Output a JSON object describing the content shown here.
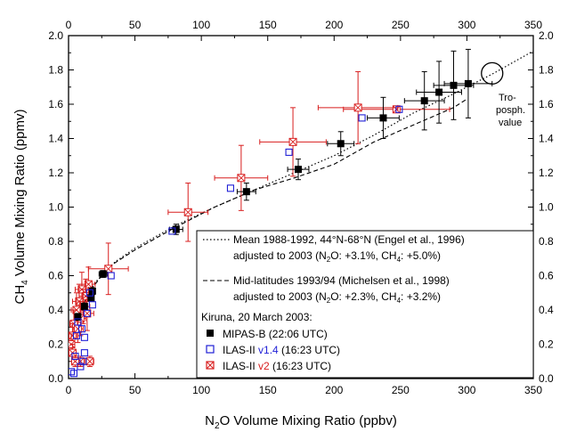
{
  "chart_data": {
    "type": "scatter",
    "xlabel_main": "N",
    "xlabel_sub": "2",
    "xlabel_rest": "O Volume Mixing Ratio (ppbv)",
    "ylabel_main": "CH",
    "ylabel_sub": "4",
    "ylabel_rest": " Volume Mixing Ratio (ppmv)",
    "xlim": [
      0,
      350
    ],
    "ylim": [
      0.0,
      2.0
    ],
    "xticks": [
      0,
      50,
      100,
      150,
      200,
      250,
      300,
      350
    ],
    "yticks": [
      0.0,
      0.2,
      0.4,
      0.6,
      0.8,
      1.0,
      1.2,
      1.4,
      1.6,
      1.8,
      2.0
    ],
    "xtick_labels": [
      "0",
      "50",
      "100",
      "150",
      "200",
      "250",
      "300",
      "350"
    ],
    "ytick_labels": [
      "0.0",
      "0.2",
      "0.4",
      "0.6",
      "0.8",
      "1.0",
      "1.2",
      "1.4",
      "1.6",
      "1.8",
      "2.0"
    ],
    "annotation": [
      "Tro-",
      "posph.",
      "value"
    ],
    "tropo_point": {
      "x": 319,
      "y": 1.78
    },
    "legend": {
      "mean_line1": "Mean 1988-1992, 44°N-68°N (Engel et al., 1996)",
      "mean_line2_a": "adjusted to 2003 (N",
      "mean_line2_sub1": "2",
      "mean_line2_b": "O: +3.1%, CH",
      "mean_line2_sub2": "4",
      "mean_line2_c": ": +5.0%)",
      "mid_line1": "Mid-latitudes 1993/94 (Michelsen et al., 1998)",
      "mid_line2_a": "adjusted to 2003 (N",
      "mid_line2_sub1": "2",
      "mid_line2_b": "O: +2.3%, CH",
      "mid_line2_sub2": "4",
      "mid_line2_c": ": +3.2%)",
      "kiruna": "Kiruna, 20 March 2003:",
      "mipas": "MIPAS-B (22:06 UTC)",
      "ilas14_a": "ILAS-II ",
      "ilas14_b": "v1.4",
      "ilas14_c": " (16:23 UTC)",
      "ilas2_a": "ILAS-II ",
      "ilas2_b": "v2",
      "ilas2_c": " (16:23 UTC)"
    },
    "colors": {
      "mipas": "#000000",
      "ilas14": "#1f1fd6",
      "ilas2": "#d81e1e",
      "axis": "#000000"
    },
    "series": [
      {
        "name": "Mean 1988-1992, 44°N-68°N (Engel et al., 1996)",
        "style": "dotted",
        "x": [
          2,
          10,
          20,
          35,
          50,
          80,
          110,
          140,
          170,
          200,
          230,
          260,
          290,
          320,
          350
        ],
        "y": [
          0.25,
          0.42,
          0.56,
          0.68,
          0.76,
          0.89,
          1.0,
          1.1,
          1.2,
          1.3,
          1.42,
          1.55,
          1.66,
          1.78,
          1.91
        ]
      },
      {
        "name": "Mid-latitudes 1993/94 (Michelsen et al., 1998)",
        "style": "dashed",
        "x": [
          5,
          15,
          30,
          50,
          80,
          110,
          140,
          170,
          200,
          230,
          260,
          290,
          300
        ],
        "y": [
          0.33,
          0.5,
          0.65,
          0.75,
          0.88,
          1.0,
          1.1,
          1.17,
          1.25,
          1.38,
          1.48,
          1.58,
          1.63
        ]
      },
      {
        "name": "MIPAS-B (22:06 UTC)",
        "marker": "filled-square",
        "points": [
          {
            "x": 301,
            "y": 1.72,
            "xe": 18,
            "ye": 0.2
          },
          {
            "x": 290,
            "y": 1.71,
            "xe": 15,
            "ye": 0.2
          },
          {
            "x": 279,
            "y": 1.67,
            "xe": 17,
            "ye": 0.18
          },
          {
            "x": 268,
            "y": 1.62,
            "xe": 15,
            "ye": 0.17
          },
          {
            "x": 237,
            "y": 1.52,
            "xe": 12,
            "ye": 0.12
          },
          {
            "x": 205,
            "y": 1.37,
            "xe": 10,
            "ye": 0.07
          },
          {
            "x": 173,
            "y": 1.22,
            "xe": 8,
            "ye": 0.06
          },
          {
            "x": 134,
            "y": 1.09,
            "xe": 7,
            "ye": 0.05
          },
          {
            "x": 81,
            "y": 0.87,
            "xe": 5,
            "ye": 0.03
          },
          {
            "x": 26,
            "y": 0.61,
            "xe": 3,
            "ye": 0.02
          },
          {
            "x": 18,
            "y": 0.51,
            "xe": 2,
            "ye": 0.02
          },
          {
            "x": 17,
            "y": 0.47,
            "xe": 2,
            "ye": 0.02
          },
          {
            "x": 12,
            "y": 0.42,
            "xe": 2,
            "ye": 0.02
          },
          {
            "x": 7,
            "y": 0.36,
            "xe": 2,
            "ye": 0.02
          }
        ]
      },
      {
        "name": "ILAS-II v1.4 (16:23 UTC)",
        "marker": "open-square",
        "points": [
          {
            "x": 249,
            "y": 1.57
          },
          {
            "x": 221,
            "y": 1.52
          },
          {
            "x": 166,
            "y": 1.32
          },
          {
            "x": 122,
            "y": 1.11
          },
          {
            "x": 78,
            "y": 0.86
          },
          {
            "x": 32,
            "y": 0.6
          },
          {
            "x": 16,
            "y": 0.5
          },
          {
            "x": 18,
            "y": 0.43
          },
          {
            "x": 14,
            "y": 0.38
          },
          {
            "x": 7,
            "y": 0.33
          },
          {
            "x": 10,
            "y": 0.29
          },
          {
            "x": 6,
            "y": 0.25
          },
          {
            "x": 12,
            "y": 0.24
          },
          {
            "x": 12,
            "y": 0.15
          },
          {
            "x": 5,
            "y": 0.13
          },
          {
            "x": 9,
            "y": 0.07
          },
          {
            "x": 11,
            "y": 0.1
          },
          {
            "x": 4,
            "y": 0.03
          },
          {
            "x": 2,
            "y": 0.04
          }
        ]
      },
      {
        "name": "ILAS-II v2 (16:23 UTC)",
        "marker": "crossed-square",
        "points": [
          {
            "x": 247,
            "y": 1.57,
            "xe": 40,
            "ye": 0.0
          },
          {
            "x": 218,
            "y": 1.58,
            "xe": 30,
            "ye": 0.21
          },
          {
            "x": 169,
            "y": 1.38,
            "xe": 25,
            "ye": 0.2
          },
          {
            "x": 130,
            "y": 1.17,
            "xe": 20,
            "ye": 0.19
          },
          {
            "x": 90,
            "y": 0.97,
            "xe": 15,
            "ye": 0.17
          },
          {
            "x": 30,
            "y": 0.64,
            "xe": 15,
            "ye": 0.15
          },
          {
            "x": 15,
            "y": 0.55,
            "xe": 5,
            "ye": 0.1
          },
          {
            "x": 10,
            "y": 0.52,
            "xe": 5,
            "ye": 0.1
          },
          {
            "x": 13,
            "y": 0.48,
            "xe": 5,
            "ye": 0.1
          },
          {
            "x": 8,
            "y": 0.45,
            "xe": 5,
            "ye": 0.1
          },
          {
            "x": 11,
            "y": 0.42,
            "xe": 5,
            "ye": 0.1
          },
          {
            "x": 6,
            "y": 0.4,
            "xe": 4,
            "ye": 0.1
          },
          {
            "x": 14,
            "y": 0.38,
            "xe": 5,
            "ye": 0.1
          },
          {
            "x": 9,
            "y": 0.35,
            "xe": 4,
            "ye": 0.1
          },
          {
            "x": 4,
            "y": 0.32,
            "xe": 3,
            "ye": 0.08
          },
          {
            "x": 7,
            "y": 0.29,
            "xe": 4,
            "ye": 0.08
          },
          {
            "x": 3,
            "y": 0.25,
            "xe": 3,
            "ye": 0.07
          },
          {
            "x": 2,
            "y": 0.2,
            "xe": 2,
            "ye": 0.06
          },
          {
            "x": 3,
            "y": 0.15,
            "xe": 2,
            "ye": 0.05
          },
          {
            "x": 9,
            "y": 0.1,
            "xe": 3,
            "ye": 0.03
          },
          {
            "x": 16,
            "y": 0.1,
            "xe": 3,
            "ye": 0.03
          },
          {
            "x": 5,
            "y": 0.1,
            "xe": 2,
            "ye": 0.03
          }
        ]
      }
    ]
  }
}
